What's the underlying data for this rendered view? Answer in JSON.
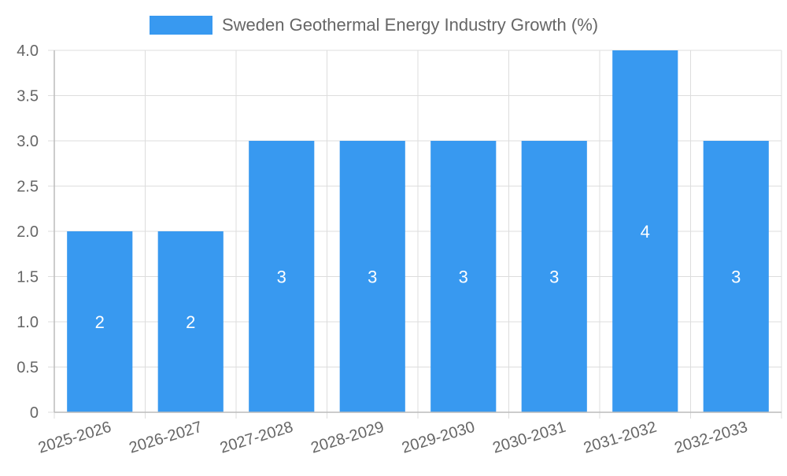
{
  "chart_data": {
    "type": "bar",
    "categories": [
      "2025-2026",
      "2026-2027",
      "2027-2028",
      "2028-2029",
      "2029-2030",
      "2030-2031",
      "2031-2032",
      "2032-2033"
    ],
    "series": [
      {
        "name": "Sweden Geothermal Energy Industry Growth (%)",
        "values": [
          2,
          2,
          3,
          3,
          3,
          3,
          4,
          3
        ],
        "color": "#3899f0"
      }
    ],
    "data_labels": [
      "2",
      "2",
      "3",
      "3",
      "3",
      "3",
      "4",
      "3"
    ],
    "y_ticks": [
      "0",
      "0.5",
      "1.0",
      "1.5",
      "2.0",
      "2.5",
      "3.0",
      "3.5",
      "4.0"
    ],
    "ylim": [
      0,
      4
    ],
    "title": "",
    "xlabel": "",
    "ylabel": "",
    "grid": true,
    "legend_position": "top-center",
    "colors": {
      "bar": "#3899f0",
      "grid": "#dddddd",
      "axis_text": "#666666",
      "data_label": "#ffffff"
    }
  }
}
